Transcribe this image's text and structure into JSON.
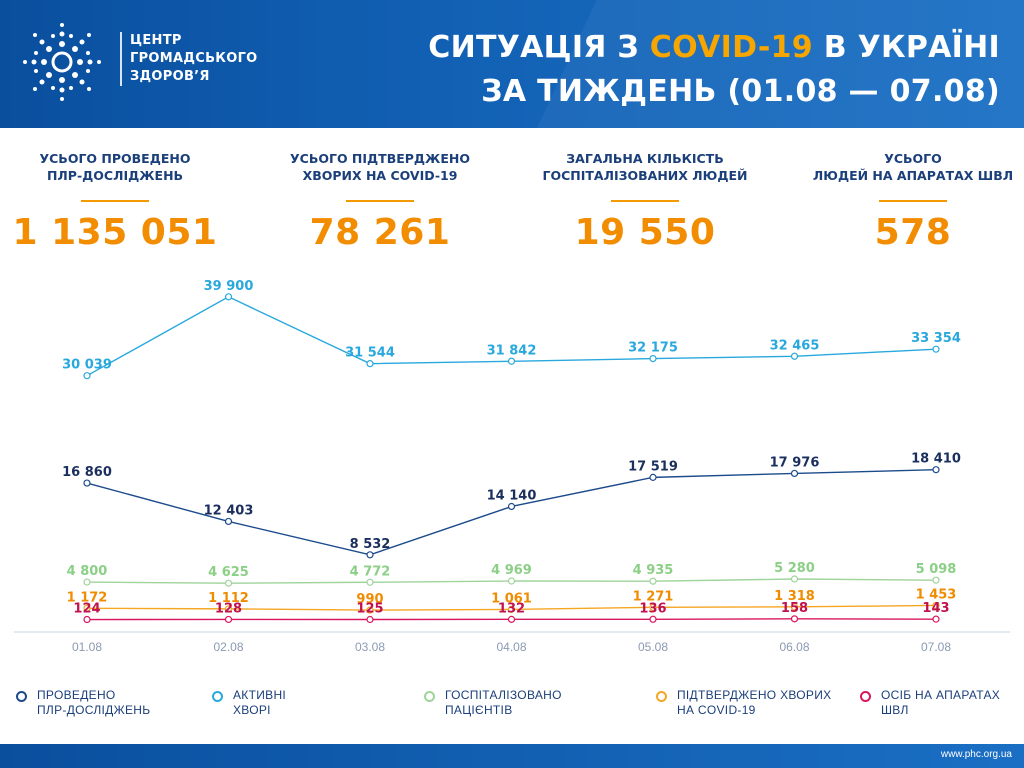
{
  "header": {
    "org_lines": [
      "ЦЕНТР",
      "ГРОМАДСЬКОГО",
      "ЗДОРОВ’Я"
    ],
    "title_pre": "СИТУАЦІЯ З ",
    "title_highlight": "COVID-19",
    "title_post": " В УКРАЇНІ",
    "title_line2": "ЗА ТИЖДЕНЬ (01.08 — 07.08)",
    "highlight_color": "#f7a600"
  },
  "stats": [
    {
      "label_lines": [
        "УСЬОГО ПРОВЕДЕНО",
        "ПЛР-ДОСЛІДЖЕНЬ"
      ],
      "value": "1 135 051"
    },
    {
      "label_lines": [
        "УСЬОГО ПІДТВЕРДЖЕНО",
        "ХВОРИХ НА COVID-19"
      ],
      "value": "78 261"
    },
    {
      "label_lines": [
        "ЗАГАЛЬНА КІЛЬКІСТЬ",
        "ГОСПІТАЛІЗОВАНИХ ЛЮДЕЙ"
      ],
      "value": "19 550"
    },
    {
      "label_lines": [
        "УСЬОГО",
        "ЛЮДЕЙ НА АПАРАТАХ ШВЛ"
      ],
      "value": "578"
    }
  ],
  "chart_data": {
    "type": "line",
    "categories": [
      "01.08",
      "02.08",
      "03.08",
      "04.08",
      "05.08",
      "06.08",
      "07.08"
    ],
    "series": [
      {
        "key": "active",
        "name": "АКТИВНІ ХВОРІ",
        "color": "#29a8de",
        "label_color": "#29a8de",
        "values": [
          30039,
          39900,
          31544,
          31842,
          32175,
          32465,
          33354
        ],
        "labels": [
          "30 039",
          "39 900",
          "31 544",
          "31 842",
          "32 175",
          "32 465",
          "33 354"
        ]
      },
      {
        "key": "pcr",
        "name": "ПРОВЕДЕНО ПЛР-ДОСЛІДЖЕНЬ",
        "color": "#1c4b8c",
        "label_color": "#1b2f5e",
        "values": [
          16860,
          12403,
          8532,
          14140,
          17519,
          17976,
          18410
        ],
        "labels": [
          "16 860",
          "12 403",
          "8 532",
          "14 140",
          "17 519",
          "17 976",
          "18 410"
        ]
      },
      {
        "key": "hosp",
        "name": "ГОСПІТАЛІЗОВАНО ПАЦІЄНТІВ",
        "color": "#9fd49b",
        "label_color": "#8ccf86",
        "values": [
          4800,
          4625,
          4772,
          4969,
          4935,
          5280,
          5098
        ],
        "labels": [
          "4 800",
          "4 625",
          "4 772",
          "4 969",
          "4 935",
          "5 280",
          "5 098"
        ]
      },
      {
        "key": "confirmed",
        "name": "ПІДТВЕРДЖЕНО ХВОРИХ НА COVID-19",
        "color": "#f5a623",
        "label_color": "#f08c00",
        "values": [
          1172,
          1112,
          990,
          1061,
          1271,
          1318,
          1453
        ],
        "labels": [
          "1 172",
          "1 112",
          "990",
          "1 061",
          "1 271",
          "1 318",
          "1 453"
        ]
      },
      {
        "key": "ventilator",
        "name": "ОСІБ НА АПАРАТАХ ШВЛ",
        "color": "#d9175f",
        "label_color": "#c0124f",
        "values": [
          124,
          128,
          125,
          132,
          136,
          158,
          143
        ],
        "labels": [
          "124",
          "128",
          "125",
          "132",
          "136",
          "158",
          "143"
        ]
      }
    ]
  },
  "legend": [
    {
      "lines": [
        "ПРОВЕДЕНО",
        "ПЛР-ДОСЛІДЖЕНЬ"
      ],
      "color": "#1c4b8c"
    },
    {
      "lines": [
        "АКТИВНІ",
        "ХВОРІ"
      ],
      "color": "#29a8de"
    },
    {
      "lines": [
        "ГОСПІТАЛІЗОВАНО",
        "ПАЦІЄНТІВ"
      ],
      "color": "#9fd49b"
    },
    {
      "lines": [
        "ПІДТВЕРДЖЕНО ХВОРИХ",
        "НА COVID-19"
      ],
      "color": "#f5a623"
    },
    {
      "lines": [
        "ОСІБ НА АПАРАТАХ",
        "ШВЛ"
      ],
      "color": "#d9175f"
    }
  ],
  "footer": {
    "url": "www.phc.org.ua"
  }
}
